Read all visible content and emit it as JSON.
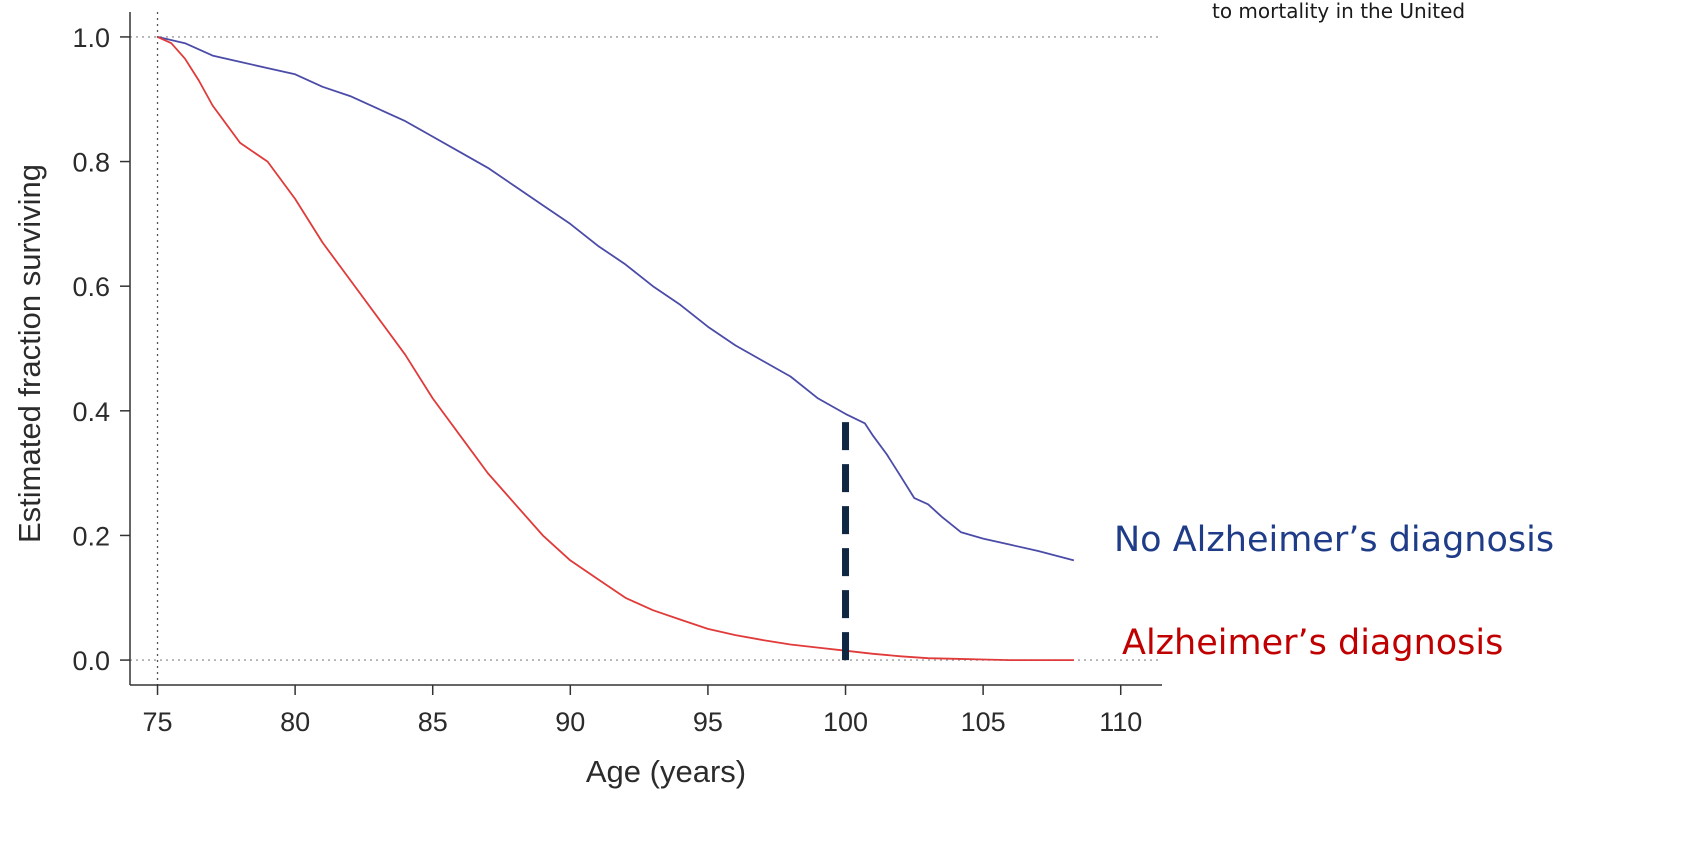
{
  "note": "to mortality in the United",
  "chart_data": {
    "type": "line",
    "title": "",
    "xlabel": "Age (years)",
    "ylabel": "Estimated fraction surviving",
    "xlim": [
      74,
      111.5
    ],
    "ylim": [
      -0.04,
      1.04
    ],
    "xticks": [
      75,
      80,
      85,
      90,
      95,
      100,
      105,
      110
    ],
    "yticks": [
      0.0,
      0.2,
      0.4,
      0.6,
      0.8,
      1.0
    ],
    "ytick_labels": [
      "0.0",
      "0.2",
      "0.4",
      "0.6",
      "0.8",
      "1.0"
    ],
    "grid": false,
    "reference_lines": {
      "horizontal": [
        0.0,
        1.0
      ],
      "vertical": [
        75
      ],
      "style": "dotted"
    },
    "highlight_line": {
      "x": 100,
      "y_from": 0.0,
      "y_to": 0.39,
      "style": "dashed",
      "color": "#0f2743"
    },
    "series": [
      {
        "name": "No Alzheimer’s diagnosis",
        "color": "#4b4ba8",
        "label_color": "#1f3c88",
        "x": [
          75,
          76,
          77,
          78,
          79,
          80,
          81,
          82,
          83,
          84,
          85,
          86,
          87,
          88,
          89,
          90,
          91,
          92,
          93,
          94,
          95,
          96,
          97,
          98,
          99,
          100,
          100.7,
          101,
          101.5,
          102,
          102.5,
          103,
          103.5,
          104.2,
          105,
          106,
          107,
          108.3
        ],
        "y": [
          1.0,
          0.99,
          0.97,
          0.96,
          0.95,
          0.94,
          0.92,
          0.905,
          0.885,
          0.865,
          0.84,
          0.815,
          0.79,
          0.76,
          0.73,
          0.7,
          0.665,
          0.635,
          0.6,
          0.57,
          0.535,
          0.505,
          0.48,
          0.455,
          0.42,
          0.395,
          0.38,
          0.36,
          0.33,
          0.295,
          0.26,
          0.25,
          0.23,
          0.205,
          0.195,
          0.185,
          0.175,
          0.16
        ]
      },
      {
        "name": "Alzheimer’s diagnosis",
        "color": "#e03a3a",
        "label_color": "#c00000",
        "x": [
          75,
          75.5,
          76,
          76.5,
          77,
          78,
          79,
          80,
          81,
          82,
          83,
          84,
          85,
          86,
          87,
          88,
          89,
          90,
          91,
          92,
          93,
          94,
          95,
          96,
          97,
          98,
          99,
          100,
          101,
          102,
          103,
          104,
          105,
          106,
          107,
          108.3
        ],
        "y": [
          1.0,
          0.99,
          0.965,
          0.93,
          0.89,
          0.83,
          0.8,
          0.74,
          0.67,
          0.61,
          0.55,
          0.49,
          0.42,
          0.36,
          0.3,
          0.25,
          0.2,
          0.16,
          0.13,
          0.1,
          0.08,
          0.065,
          0.05,
          0.04,
          0.032,
          0.025,
          0.02,
          0.015,
          0.01,
          0.006,
          0.003,
          0.002,
          0.001,
          0.0,
          0.0,
          0.0
        ]
      }
    ]
  }
}
